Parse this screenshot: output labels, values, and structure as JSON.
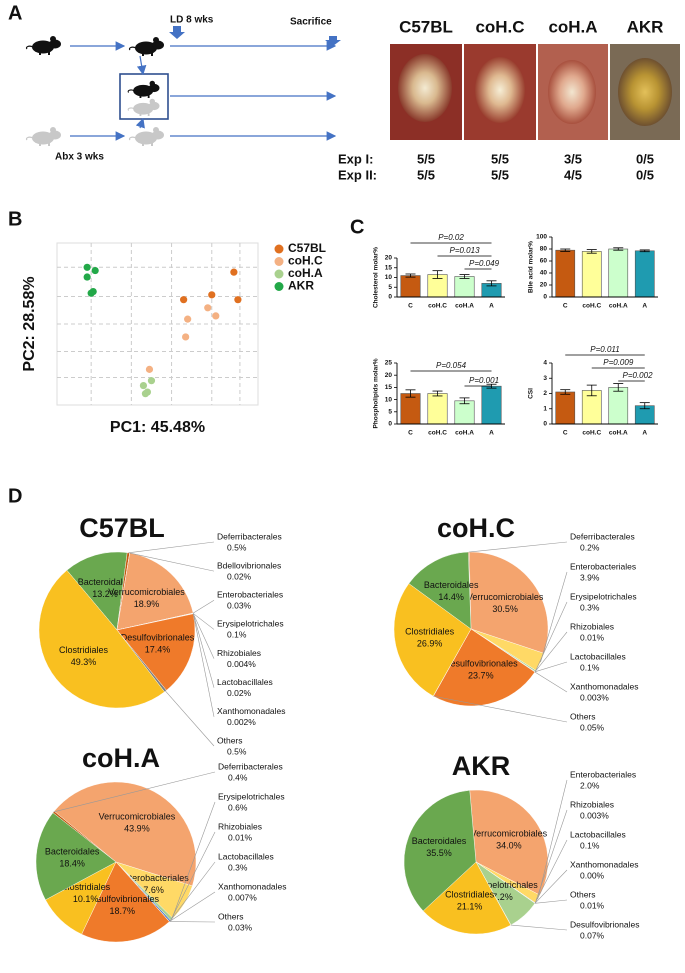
{
  "panel_labels": [
    "A",
    "B",
    "C",
    "D"
  ],
  "panel_a": {
    "ld": "LD 8 wks",
    "sacrifice": "Sacrifice",
    "abx": "Abx 3 wks",
    "groups": [
      "C57BL",
      "coH.C",
      "coH.A",
      "AKR"
    ],
    "rows": [
      [
        "Exp I:",
        "5/5",
        "5/5",
        "3/5",
        "0/5"
      ],
      [
        "Exp II:",
        "5/5",
        "5/5",
        "4/5",
        "0/5"
      ]
    ]
  },
  "chart_data": [
    {
      "type": "scatter",
      "x_label": "PC1: 45.48%",
      "y_label": "PC2: 28.58%",
      "xlim": [
        0,
        10
      ],
      "ylim": [
        0,
        10
      ],
      "grid": true,
      "legend": "right",
      "series": [
        {
          "name": "C57BL",
          "color": "#e07020",
          "x": [
            8.8,
            9.0,
            7.7,
            6.3
          ],
          "y": [
            8.2,
            6.5,
            6.8,
            6.5
          ]
        },
        {
          "name": "coH.C",
          "color": "#f4b183",
          "x": [
            7.5,
            7.9,
            6.5,
            6.4,
            4.6
          ],
          "y": [
            6.0,
            5.5,
            5.3,
            4.2,
            2.2
          ]
        },
        {
          "name": "coH.A",
          "color": "#a9d18e",
          "x": [
            4.7,
            4.3,
            4.5,
            4.4
          ],
          "y": [
            1.5,
            1.2,
            0.8,
            0.7
          ]
        },
        {
          "name": "AKR",
          "color": "#22a848",
          "x": [
            1.5,
            1.9,
            1.5,
            1.8,
            1.7
          ],
          "y": [
            8.5,
            8.3,
            7.9,
            7.0,
            6.9
          ]
        }
      ]
    },
    {
      "type": "bar",
      "y_label": "Cholesterol molar%",
      "categories": [
        "C",
        "coH.C",
        "coH.A",
        "A"
      ],
      "colors": [
        "#c55a11",
        "#ffff99",
        "#ccffcc",
        "#1f9bb0"
      ],
      "values": [
        11,
        11.5,
        10.5,
        7
      ],
      "errors": [
        0.8,
        2,
        1,
        1.3
      ],
      "ylim": [
        0,
        20
      ],
      "yticks": [
        0,
        5,
        10,
        15,
        20
      ],
      "annotations": [
        "P=0.02",
        "P=0.013",
        "P=0.049"
      ]
    },
    {
      "type": "bar",
      "y_label": "Bile acid molar%",
      "categories": [
        "C",
        "coH.C",
        "coH.A",
        "A"
      ],
      "colors": [
        "#c55a11",
        "#ffff99",
        "#ccffcc",
        "#1f9bb0"
      ],
      "values": [
        78,
        76,
        80,
        77
      ],
      "errors": [
        2,
        3,
        2,
        1.5
      ],
      "ylim": [
        0,
        100
      ],
      "yticks": [
        0,
        20,
        40,
        60,
        80,
        100
      ]
    },
    {
      "type": "bar",
      "y_label": "Phospholipids molar%",
      "categories": [
        "C",
        "coH.C",
        "coH.A",
        "A"
      ],
      "colors": [
        "#c55a11",
        "#ffff99",
        "#ccffcc",
        "#1f9bb0"
      ],
      "values": [
        12.5,
        12.5,
        9.5,
        15.5
      ],
      "errors": [
        1.5,
        1,
        1.2,
        0.8
      ],
      "ylim": [
        0,
        25
      ],
      "yticks": [
        0,
        5,
        10,
        15,
        20,
        25
      ],
      "annotations": [
        "P=0.054",
        "P=0.001"
      ]
    },
    {
      "type": "bar",
      "y_label": "CSI",
      "categories": [
        "C",
        "coH.C",
        "coH.A",
        "A"
      ],
      "colors": [
        "#c55a11",
        "#ffff99",
        "#ccffcc",
        "#1f9bb0"
      ],
      "values": [
        2.1,
        2.2,
        2.4,
        1.2
      ],
      "errors": [
        0.15,
        0.35,
        0.25,
        0.2
      ],
      "ylim": [
        0,
        4
      ],
      "yticks": [
        0,
        1,
        2,
        3,
        4
      ],
      "annotations": [
        "P=0.011",
        "P=0.009",
        "P=0.002"
      ]
    },
    {
      "type": "pie",
      "title": "C57BL",
      "labels": [
        "Bacteroidales",
        "Deferribacterales",
        "Bdellovibrionales",
        "Verrucomicrobiales",
        "Enterobacteriales",
        "Erysipelotrichales",
        "Rhizobiales",
        "Lactobacillales",
        "Xanthomonadales",
        "Desulfovibrionales",
        "Others",
        "Clostridiales"
      ],
      "values": [
        13.2,
        0.5,
        0.02,
        18.9,
        0.03,
        0.1,
        0.004,
        0.02,
        0.002,
        17.4,
        0.5,
        49.3
      ],
      "value_labels": [
        "13.2%",
        "0.5%",
        "0.02%",
        "18.9%",
        "0.03%",
        "0.1%",
        "0.004%",
        "0.02%",
        "0.002%",
        "17.4%",
        "0.5%",
        "49.3%"
      ],
      "colors": [
        "#6aa84f",
        "#c55a11",
        "#9e480e",
        "#f4a46e",
        "#ffd966",
        "#a9d18e",
        "#5b9bd5",
        "#4472c4",
        "#264478",
        "#ef7a2a",
        "#7f7f7f",
        "#f9c020"
      ]
    },
    {
      "type": "pie",
      "title": "coH.C",
      "labels": [
        "Deferribacterales",
        "Verrucomicrobiales",
        "Enterobacteriales",
        "Erysipelotrichales",
        "Rhizobiales",
        "Lactobacillales",
        "Xanthomonadales",
        "Desulfovibrionales",
        "Others",
        "Clostridiales",
        "Bacteroidales"
      ],
      "values": [
        0.2,
        30.5,
        3.9,
        0.3,
        0.01,
        0.1,
        0.003,
        23.7,
        0.05,
        26.9,
        14.4
      ],
      "value_labels": [
        "0.2%",
        "30.5%",
        "3.9%",
        "0.3%",
        "0.01%",
        "0.1%",
        "0.003%",
        "23.7%",
        "0.05%",
        "26.9%",
        "14.4%"
      ],
      "colors": [
        "#c55a11",
        "#f4a46e",
        "#ffd966",
        "#a9d18e",
        "#5b9bd5",
        "#4472c4",
        "#264478",
        "#ef7a2a",
        "#7f7f7f",
        "#f9c020",
        "#6aa84f"
      ]
    },
    {
      "type": "pie",
      "title": "coH.A",
      "labels": [
        "Deferribacterales",
        "Verrucomicrobiales",
        "Enterobacteriales",
        "Erysipelotrichales",
        "Rhizobiales",
        "Lactobacillales",
        "Xanthomonadales",
        "Others",
        "Desulfovibrionales",
        "Clostridiales",
        "Bacteroidales"
      ],
      "values": [
        0.4,
        43.9,
        7.6,
        0.6,
        0.01,
        0.3,
        0.007,
        0.03,
        18.7,
        10.1,
        18.4
      ],
      "value_labels": [
        "0.4%",
        "43.9%",
        "7.6%",
        "0.6%",
        "0.01%",
        "0.3%",
        "0.007%",
        "0.03%",
        "18.7%",
        "10.1%",
        "18.4%"
      ],
      "colors": [
        "#c55a11",
        "#f4a46e",
        "#ffd966",
        "#a9d18e",
        "#5b9bd5",
        "#4472c4",
        "#264478",
        "#7f7f7f",
        "#ef7a2a",
        "#f9c020",
        "#6aa84f"
      ]
    },
    {
      "type": "pie",
      "title": "AKR",
      "labels": [
        "Verrucomicrobiales",
        "Enterobacteriales",
        "Rhizobiales",
        "Lactobacillales",
        "Xanthomonadales",
        "Others",
        "Erysipelotrichales",
        "Desulfovibrionales",
        "Clostridiales",
        "Bacteroidales"
      ],
      "values": [
        34.0,
        2.0,
        0.003,
        0.1,
        0,
        0.01,
        7.2,
        0.07,
        21.1,
        35.5
      ],
      "value_labels": [
        "34.0%",
        "2.0%",
        "0.003%",
        "0.1%",
        "0.00%",
        "0.01%",
        "7.2%",
        "0.07%",
        "21.1%",
        "35.5%"
      ],
      "colors": [
        "#f4a46e",
        "#ffd966",
        "#5b9bd5",
        "#4472c4",
        "#264478",
        "#7f7f7f",
        "#a9d18e",
        "#ef7a2a",
        "#f9c020",
        "#6aa84f"
      ]
    }
  ]
}
